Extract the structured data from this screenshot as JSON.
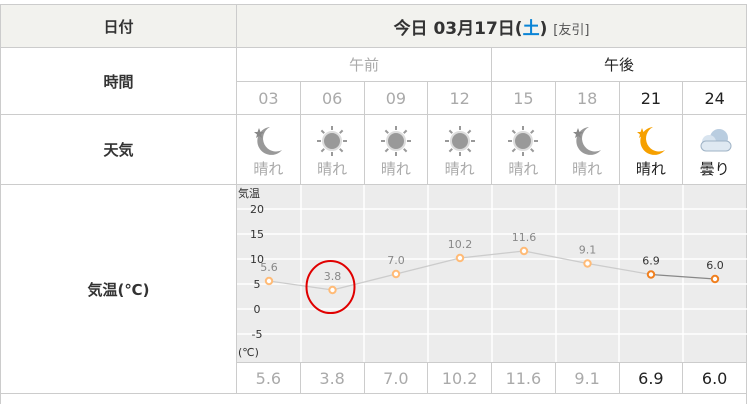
{
  "labels": {
    "date": "日付",
    "time": "時間",
    "weather": "天気",
    "temp": "気温(℃)"
  },
  "header": {
    "prefix": "今日 03月17日(",
    "weekday": "土",
    "suffix": ")",
    "tomobiki": "[友引]"
  },
  "ampm": {
    "am": "午前",
    "pm": "午後"
  },
  "columns": [
    {
      "hour": "03",
      "icon": "moon-clear-icon",
      "weather": "晴れ",
      "temp": "5.6",
      "past": true
    },
    {
      "hour": "06",
      "icon": "sun-icon",
      "weather": "晴れ",
      "temp": "3.8",
      "past": true
    },
    {
      "hour": "09",
      "icon": "sun-icon",
      "weather": "晴れ",
      "temp": "7.0",
      "past": true
    },
    {
      "hour": "12",
      "icon": "sun-icon",
      "weather": "晴れ",
      "temp": "10.2",
      "past": true
    },
    {
      "hour": "15",
      "icon": "sun-icon",
      "weather": "晴れ",
      "temp": "11.6",
      "past": true
    },
    {
      "hour": "18",
      "icon": "moon-clear-icon",
      "weather": "晴れ",
      "temp": "9.1",
      "past": true
    },
    {
      "hour": "21",
      "icon": "moon-clear-icon",
      "weather": "晴れ",
      "temp": "6.9",
      "past": false
    },
    {
      "hour": "24",
      "icon": "cloud-icon",
      "weather": "曇り",
      "temp": "6.0",
      "past": false
    }
  ],
  "chart_data": {
    "type": "line",
    "ylabel": "気温",
    "unit": "(℃)",
    "yticks": [
      "20",
      "15",
      "10",
      "5",
      "0",
      "-5"
    ],
    "ylim": [
      -10,
      22
    ],
    "x": [
      "03",
      "06",
      "09",
      "12",
      "15",
      "18",
      "21",
      "24"
    ],
    "values": [
      5.6,
      3.8,
      7.0,
      10.2,
      11.6,
      9.1,
      6.9,
      6.0
    ],
    "highlighted": "3.8"
  },
  "colors": {
    "past_point": "#ffbb77",
    "now_point": "#f08020",
    "annotation": "#e00000",
    "weekday": "#0a84d6"
  }
}
